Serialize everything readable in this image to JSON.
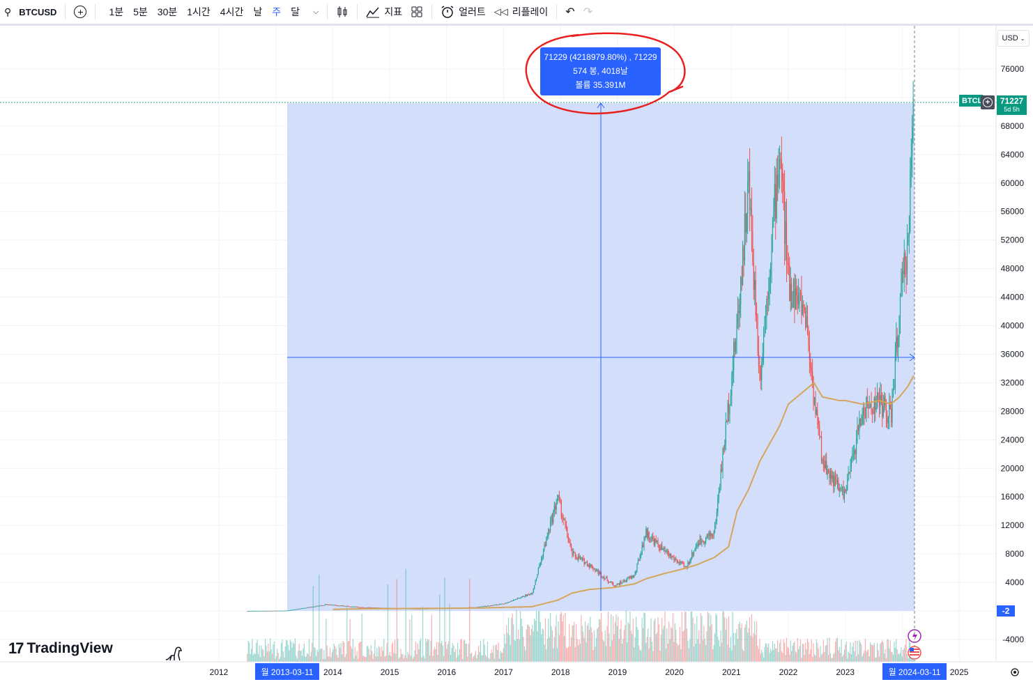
{
  "toolbar": {
    "symbol": "BTCUSD",
    "timeframes": [
      "1분",
      "5분",
      "30분",
      "1시간",
      "4시간",
      "날",
      "주",
      "달"
    ],
    "active_timeframe": "주",
    "indicators_label": "지표",
    "alert_label": "얼러트",
    "replay_label": "리플레이"
  },
  "currency": "USD",
  "measure": {
    "line1": "71229 (4218979.80%) , 71229",
    "line2": "574 봉, 4018날",
    "line3": "볼륨 35.391M"
  },
  "price_axis": {
    "ticks": [
      "76000",
      "68000",
      "64000",
      "60000",
      "56000",
      "52000",
      "48000",
      "44000",
      "40000",
      "36000",
      "32000",
      "28000",
      "24000",
      "20000",
      "16000",
      "12000",
      "8000",
      "4000",
      "-4000"
    ],
    "current_price": "71227",
    "symbol_tag": "BTCL",
    "low_label": "-2",
    "countdown": "5d 5h"
  },
  "time_axis": {
    "years": [
      "2012",
      "2014",
      "2015",
      "2016",
      "2017",
      "2018",
      "2019",
      "2020",
      "2021",
      "2022",
      "2023",
      "2025"
    ],
    "start_label": "월 2013-03-11",
    "end_label": "월 2024-03-11"
  },
  "logo_text": "TradingView",
  "colors": {
    "accent": "#2962ff",
    "up": "#26a69a",
    "down": "#ef5350",
    "ma": "#d4a55a",
    "measure_fill": "#d1dcfb",
    "annotation": "#e82020"
  },
  "chart_data": {
    "type": "line",
    "title": "",
    "xlabel": "",
    "ylabel": "",
    "ylim": [
      -4000,
      78000
    ],
    "x": [
      2012.5,
      2013.2,
      2013.9,
      2014.5,
      2015.5,
      2016.5,
      2017.0,
      2017.5,
      2017.95,
      2018.2,
      2018.5,
      2018.95,
      2019.3,
      2019.5,
      2019.8,
      2020.2,
      2020.4,
      2020.7,
      2020.95,
      2021.1,
      2021.3,
      2021.5,
      2021.85,
      2022.0,
      2022.3,
      2022.45,
      2022.6,
      2022.9,
      2023.0,
      2023.3,
      2023.6,
      2023.8,
      2023.95,
      2024.1,
      2024.2
    ],
    "series": [
      {
        "values": [
          5,
          50,
          900,
          500,
          300,
          500,
          1000,
          2500,
          16000,
          8000,
          6500,
          3500,
          5000,
          11000,
          8500,
          6000,
          9500,
          11000,
          29000,
          40000,
          60000,
          33000,
          65000,
          46000,
          42000,
          30000,
          21000,
          17000,
          16500,
          28000,
          29500,
          27000,
          42000,
          52000,
          71229
        ]
      },
      {
        "values": [
          0,
          0,
          200,
          300,
          350,
          400,
          500,
          600,
          1500,
          2500,
          3000,
          3300,
          3800,
          4500,
          5200,
          6000,
          6500,
          7500,
          9000,
          14000,
          17000,
          21000,
          26000,
          29000,
          31000,
          32000,
          30000,
          29500,
          29500,
          29000,
          29500,
          29000,
          30000,
          31500,
          33000
        ]
      }
    ]
  }
}
